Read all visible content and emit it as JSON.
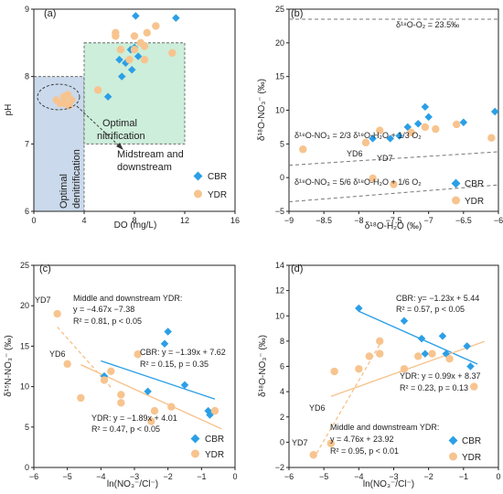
{
  "colors": {
    "CBR": "#2b9fe6",
    "YDR": "#f7c48f",
    "fit_CBR": "#2b9fe6",
    "fit_YDR": "#f7c48f",
    "box_blue": "#c4d5e9",
    "box_green": "#c8ecd6",
    "ref_line": "#777777"
  },
  "legend": [
    {
      "key": "CBR",
      "label": "CBR"
    },
    {
      "key": "YDR",
      "label": "YDR"
    }
  ],
  "chart_data": [
    {
      "id": "a",
      "panel_label": "(a)",
      "type": "scatter",
      "xlabel": "DO (mg/L)",
      "ylabel": "pH",
      "xlim": [
        0,
        16
      ],
      "ylim": [
        6,
        9
      ],
      "xticks": [
        0,
        4,
        8,
        12,
        16
      ],
      "yticks": [
        6,
        7,
        8,
        9
      ],
      "legend_position": "bottom-right",
      "series": [
        {
          "name": "CBR",
          "points": [
            [
              8.1,
              8.9
            ],
            [
              11.3,
              8.87
            ],
            [
              7.7,
              8.4
            ],
            [
              7.3,
              8.2
            ],
            [
              7.8,
              8.1
            ],
            [
              8.3,
              8.3
            ],
            [
              7.0,
              8.0
            ],
            [
              5.9,
              7.7
            ],
            [
              6.8,
              8.25
            ],
            [
              8.0,
              8.43
            ]
          ]
        },
        {
          "name": "YDR",
          "points": [
            [
              6.5,
              8.6
            ],
            [
              6.5,
              8.65
            ],
            [
              8.0,
              8.6
            ],
            [
              9.0,
              8.65
            ],
            [
              9.7,
              8.75
            ],
            [
              8.5,
              8.5
            ],
            [
              8.8,
              8.45
            ],
            [
              11.0,
              8.35
            ],
            [
              6.9,
              8.4
            ],
            [
              8.0,
              8.4
            ],
            [
              7.6,
              8.25
            ],
            [
              8.8,
              8.25
            ],
            [
              5.1,
              7.8
            ],
            [
              1.8,
              7.65
            ],
            [
              2.1,
              7.6
            ],
            [
              2.4,
              7.7
            ],
            [
              2.7,
              7.73
            ],
            [
              3.0,
              7.65
            ],
            [
              2.8,
              7.57
            ],
            [
              2.5,
              7.6
            ]
          ]
        }
      ],
      "regions": [
        {
          "label": "Optimal denitrification",
          "x": [
            0,
            4
          ],
          "y": [
            6,
            8
          ],
          "color": "box_blue"
        },
        {
          "label": "Optimal nitrification",
          "x": [
            4,
            12
          ],
          "y": [
            7,
            8.5
          ],
          "color": "box_green"
        }
      ],
      "annotations": [
        {
          "text": "Midstream and downstream"
        }
      ]
    },
    {
      "id": "b",
      "panel_label": "(b)",
      "type": "scatter",
      "xlabel": "δ¹⁸O-H₂O (‰)",
      "ylabel": "δ¹⁸O-NO₃⁻ (‰)",
      "xlim": [
        -9,
        -6
      ],
      "ylim": [
        -5,
        25
      ],
      "xticks": [
        -9,
        -8.5,
        -8,
        -7.5,
        -7,
        -6.5,
        -6
      ],
      "yticks": [
        -5,
        0,
        5,
        10,
        15,
        20,
        25
      ],
      "legend_position": "right",
      "series": [
        {
          "name": "CBR",
          "points": [
            [
              -7.8,
              5.8
            ],
            [
              -7.55,
              5.8
            ],
            [
              -7.42,
              6.2
            ],
            [
              -7.3,
              7.5
            ],
            [
              -7.15,
              8.0
            ],
            [
              -7.05,
              10.5
            ],
            [
              -7.0,
              9.0
            ],
            [
              -6.5,
              8.2
            ],
            [
              -6.05,
              9.8
            ]
          ]
        },
        {
          "name": "YDR",
          "points": [
            [
              -8.8,
              4.2
            ],
            [
              -7.9,
              5.2
            ],
            [
              -7.7,
              7.0
            ],
            [
              -7.25,
              6.7
            ],
            [
              -7.05,
              7.5
            ],
            [
              -6.9,
              7.2
            ],
            [
              -6.6,
              7.9
            ],
            [
              -6.1,
              5.9
            ],
            [
              -7.8,
              -0.1
            ],
            [
              -7.5,
              -1.0
            ]
          ]
        }
      ],
      "reference_lines": [
        {
          "label": "δ¹⁸O-O₂ = 23.5‰",
          "slope": 0,
          "intercept": 23.5
        },
        {
          "label": "δ¹⁸O-NO₃ = 2/3 δ¹⁸O-H₂O + 1/3 O₂",
          "slope": 0.6667,
          "intercept": 7.8333
        },
        {
          "label": "δ¹⁸O-NO₃ = 5/6 δ¹⁸O-H₂O + 1/6 O₂",
          "slope": 0.8333,
          "intercept": 3.9167
        }
      ],
      "point_labels": [
        {
          "text": "YD6",
          "x": -7.8,
          "y": -0.1
        },
        {
          "text": "YD7",
          "x": -7.5,
          "y": -1.0
        }
      ]
    },
    {
      "id": "c",
      "panel_label": "(c)",
      "type": "scatter",
      "xlabel": "ln(NO₃⁻/Cl⁻)",
      "ylabel": "δ¹⁵N-NO₃⁻ (‰)",
      "xlim": [
        -6,
        0
      ],
      "ylim": [
        0,
        25
      ],
      "xticks": [
        -6,
        -5,
        -4,
        -3,
        -2,
        -1,
        0
      ],
      "yticks": [
        0,
        5,
        10,
        15,
        20,
        25
      ],
      "legend_position": "bottom-right",
      "series": [
        {
          "name": "CBR",
          "points": [
            [
              -2.0,
              16.8
            ],
            [
              -2.1,
              15.3
            ],
            [
              -3.9,
              11.3
            ],
            [
              -2.6,
              9.4
            ],
            [
              -1.5,
              10.2
            ],
            [
              -0.8,
              7.0
            ],
            [
              -0.75,
              6.5
            ]
          ]
        },
        {
          "name": "YDR",
          "points": [
            [
              -5.3,
              19.0
            ],
            [
              -5.0,
              12.8
            ],
            [
              -3.9,
              10.8
            ],
            [
              -3.7,
              11.9
            ],
            [
              -3.4,
              9.0
            ],
            [
              -3.4,
              8.0
            ],
            [
              -2.9,
              14.0
            ],
            [
              -2.4,
              7.0
            ],
            [
              -1.9,
              7.5
            ],
            [
              -2.5,
              5.7
            ],
            [
              -4.6,
              8.6
            ],
            [
              -0.6,
              7.0
            ]
          ]
        }
      ],
      "fits": [
        {
          "series": "CBR",
          "slope": -1.39,
          "intercept": 7.62,
          "x_range": [
            -4.0,
            -0.6
          ],
          "dash": false,
          "label_lines": [
            "CBR: y = −1.39x + 7.62",
            "R² = 0.15, p = 0.35"
          ]
        },
        {
          "series": "YDR",
          "slope": -1.89,
          "intercept": 4.01,
          "x_range": [
            -4.6,
            -0.4
          ],
          "dash": false,
          "label_lines": [
            "YDR: y = −1.89x + 4.01",
            "R² = 0.47, p < 0.05"
          ]
        },
        {
          "series": "YDR",
          "slope": -4.67,
          "intercept": -7.38,
          "x_range": [
            -5.3,
            -3.7
          ],
          "dash": true,
          "label_lines": [
            "Middle and downstream YDR:",
            "y = −4.67x −7.38",
            "R² = 0.81, p < 0.05"
          ]
        }
      ],
      "point_labels": [
        {
          "text": "YD7",
          "x": -5.3,
          "y": 19.0
        },
        {
          "text": "YD6",
          "x": -5.0,
          "y": 12.8
        }
      ]
    },
    {
      "id": "d",
      "panel_label": "(d)",
      "type": "scatter",
      "xlabel": "ln(NO₃⁻/Cl⁻)",
      "ylabel": "δ¹⁸O-NO₃⁻ (‰)",
      "xlim": [
        -6,
        0
      ],
      "ylim": [
        -2,
        14
      ],
      "xticks": [
        -6,
        -5,
        -4,
        -3,
        -2,
        -1,
        0
      ],
      "yticks": [
        -2,
        0,
        2,
        4,
        6,
        8,
        10,
        12,
        14
      ],
      "legend_position": "bottom-right",
      "series": [
        {
          "name": "CBR",
          "points": [
            [
              -4.0,
              10.6
            ],
            [
              -2.7,
              9.6
            ],
            [
              -2.2,
              8.2
            ],
            [
              -1.6,
              8.4
            ],
            [
              -2.1,
              7.0
            ],
            [
              -1.5,
              7.0
            ],
            [
              -0.9,
              7.6
            ],
            [
              -0.8,
              6.0
            ]
          ]
        },
        {
          "name": "YDR",
          "points": [
            [
              -5.3,
              -1.0
            ],
            [
              -4.8,
              -0.1
            ],
            [
              -4.7,
              5.6
            ],
            [
              -4.0,
              5.8
            ],
            [
              -3.7,
              6.8
            ],
            [
              -3.4,
              7.0
            ],
            [
              -3.4,
              8.0
            ],
            [
              -2.7,
              5.8
            ],
            [
              -2.3,
              6.8
            ],
            [
              -1.9,
              7.0
            ],
            [
              -1.4,
              6.6
            ],
            [
              -0.7,
              4.4
            ]
          ]
        }
      ],
      "fits": [
        {
          "series": "CBR",
          "slope": -1.23,
          "intercept": 5.44,
          "x_range": [
            -4.0,
            -0.6
          ],
          "dash": false,
          "label_lines": [
            "CBR: y= −1.23x + 5.44",
            "R² = 0.57, p < 0.05"
          ]
        },
        {
          "series": "YDR",
          "slope": 0.99,
          "intercept": 8.37,
          "x_range": [
            -4.8,
            -0.4
          ],
          "dash": false,
          "label_lines": [
            "YDR: y = 0.99x + 8.37",
            "R² = 0.23, p = 0.13"
          ]
        },
        {
          "series": "YDR",
          "slope": 4.76,
          "intercept": 23.92,
          "x_range": [
            -5.3,
            -3.3
          ],
          "dash": true,
          "label_lines": [
            "Middle and downstream YDR:",
            "y = 4.76x + 23.92",
            "R² = 0.95, p < 0.01"
          ]
        }
      ],
      "point_labels": [
        {
          "text": "YD6",
          "x": -4.8,
          "y": -0.1
        },
        {
          "text": "YD7",
          "x": -5.3,
          "y": -1.0
        }
      ]
    }
  ]
}
